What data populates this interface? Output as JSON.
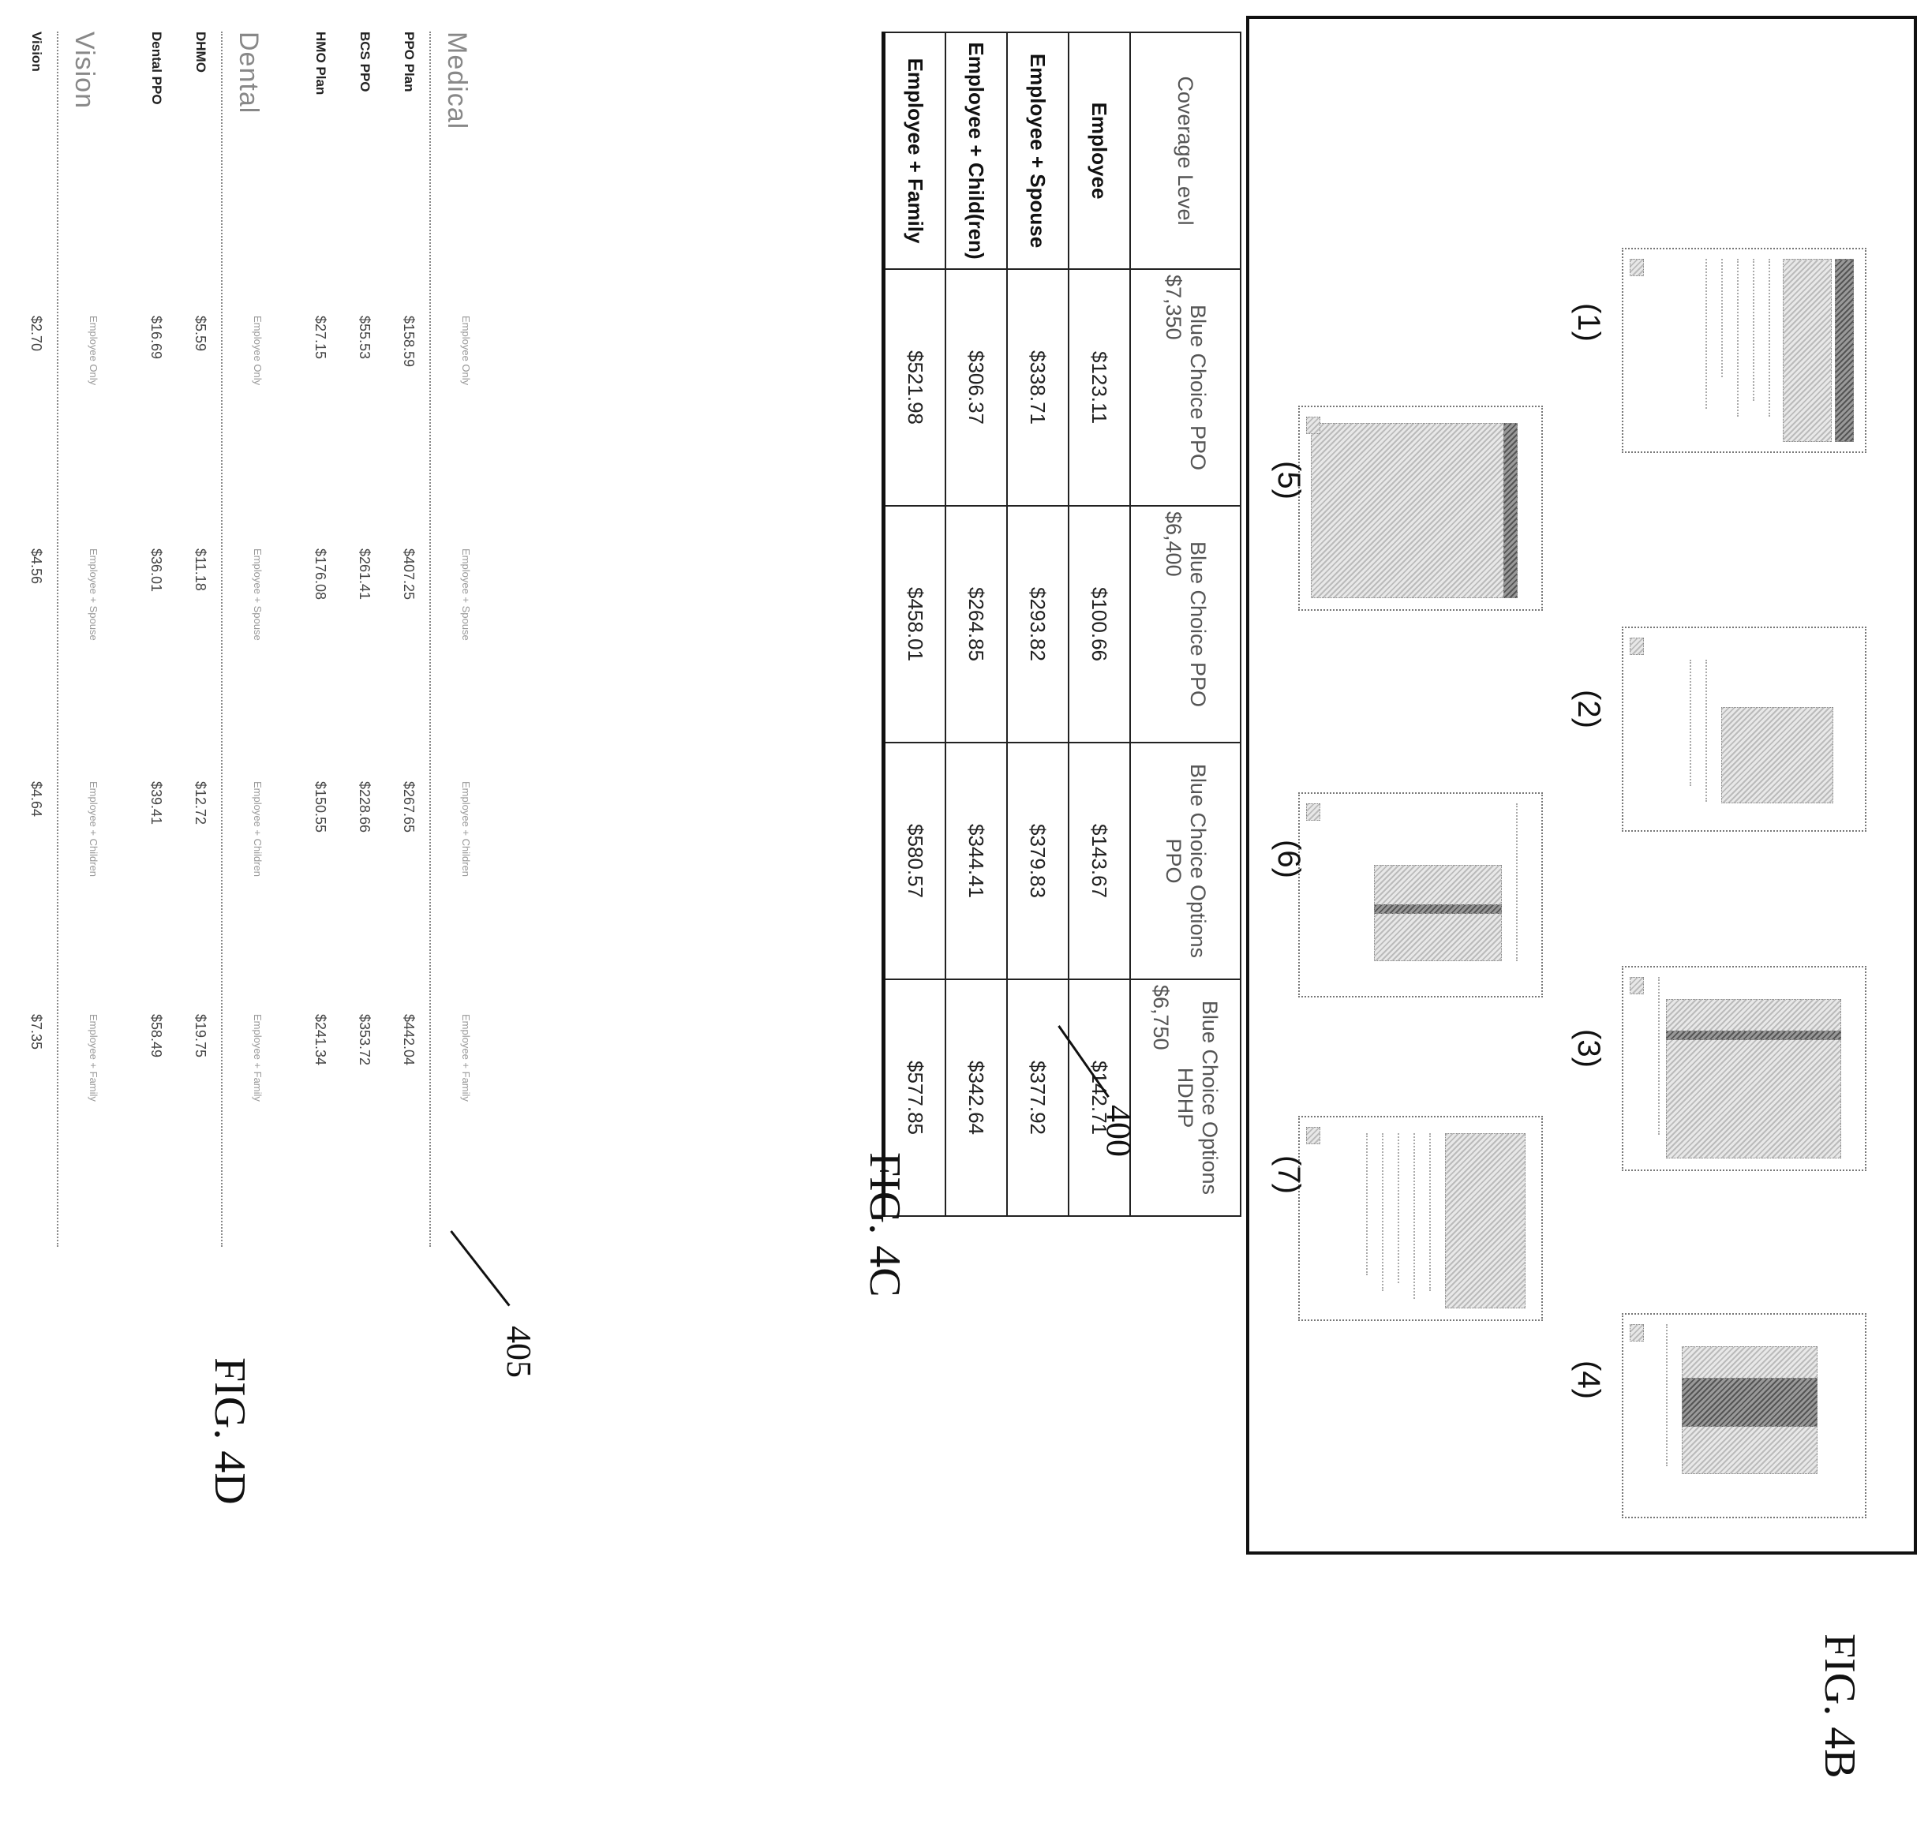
{
  "fig4b": {
    "label": "FIG. 4B",
    "thumbnails": [
      "(1)",
      "(2)",
      "(3)",
      "(4)",
      "(5)",
      "(6)",
      "(7)"
    ]
  },
  "fig4c": {
    "label": "FIG. 4C",
    "callout": "400",
    "headers": [
      {
        "name": "Coverage Level",
        "sub": ""
      },
      {
        "name": "Blue Choice PPO",
        "sub": "$7,350"
      },
      {
        "name": "Blue Choice PPO",
        "sub": "$6,400"
      },
      {
        "name": "Blue Choice Options PPO",
        "sub": ""
      },
      {
        "name": "Blue Choice Options HDHP",
        "sub": "$6,750"
      }
    ],
    "rows": [
      {
        "label": "Employee",
        "values": [
          "$123.11",
          "$100.66",
          "$143.67",
          "$142.71"
        ]
      },
      {
        "label": "Employee + Spouse",
        "values": [
          "$338.71",
          "$293.82",
          "$379.83",
          "$377.92"
        ]
      },
      {
        "label": "Employee + Child(ren)",
        "values": [
          "$306.37",
          "$264.85",
          "$344.41",
          "$342.64"
        ]
      },
      {
        "label": "Employee + Family",
        "values": [
          "$521.98",
          "$458.01",
          "$580.57",
          "$577.85"
        ]
      }
    ]
  },
  "fig4d": {
    "label": "FIG. 4D",
    "callout": "405",
    "sections": [
      {
        "title": "Medical",
        "levels": [
          "Employee Only",
          "Employee + Spouse",
          "Employee + Children",
          "Employee + Family"
        ],
        "plans": [
          {
            "name": "PPO Plan",
            "values": [
              "$158.59",
              "$407.25",
              "$267.65",
              "$442.04"
            ]
          },
          {
            "name": "BCS PPO",
            "values": [
              "$55.53",
              "$261.41",
              "$228.66",
              "$353.72"
            ]
          },
          {
            "name": "HMO Plan",
            "values": [
              "$27.15",
              "$176.08",
              "$150.55",
              "$241.34"
            ]
          }
        ]
      },
      {
        "title": "Dental",
        "levels": [
          "Employee Only",
          "Employee + Spouse",
          "Employee + Children",
          "Employee + Family"
        ],
        "plans": [
          {
            "name": "DHMO",
            "values": [
              "$5.59",
              "$11.18",
              "$12.72",
              "$19.75"
            ]
          },
          {
            "name": "Dental PPO",
            "values": [
              "$16.69",
              "$36.01",
              "$39.41",
              "$58.49"
            ]
          }
        ]
      },
      {
        "title": "Vision",
        "levels": [
          "Employee Only",
          "Employee + Spouse",
          "Employee + Children",
          "Employee + Family"
        ],
        "plans": [
          {
            "name": "Vision",
            "values": [
              "$2.70",
              "$4.56",
              "$4.64",
              "$7.35"
            ]
          }
        ]
      }
    ]
  }
}
